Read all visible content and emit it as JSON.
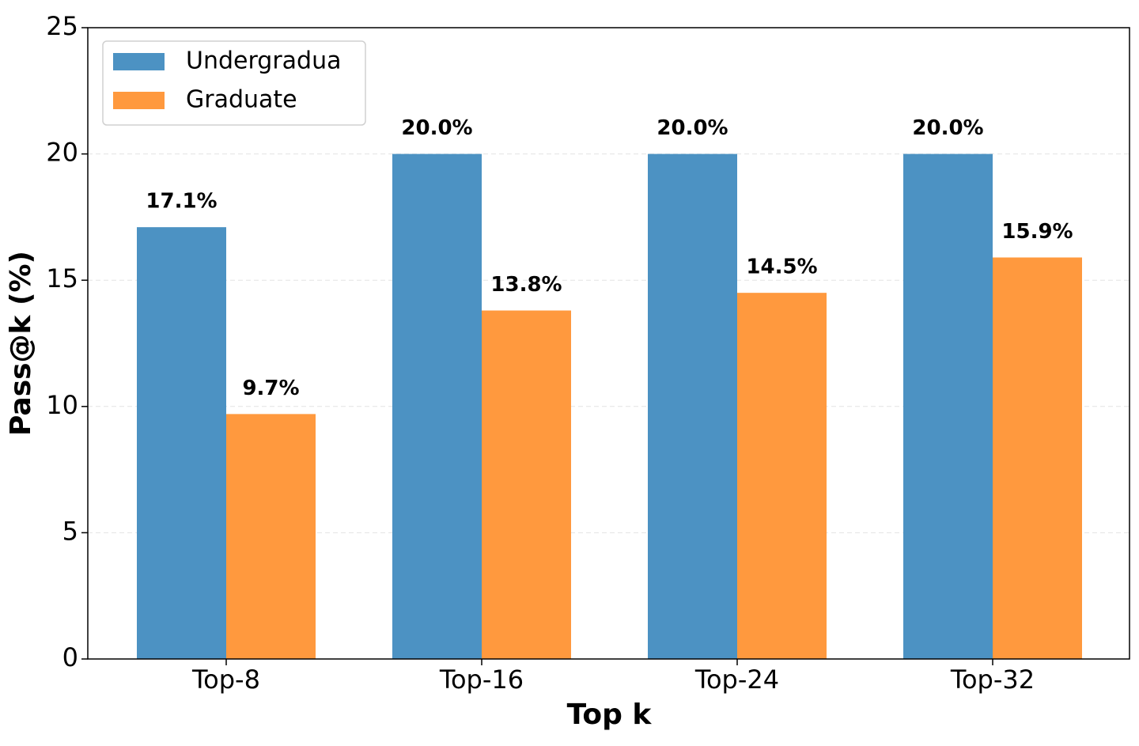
{
  "chart_data": {
    "type": "bar",
    "categories": [
      "Top-8",
      "Top-16",
      "Top-24",
      "Top-32"
    ],
    "series": [
      {
        "name": "Undergradua",
        "color": "#4c92c3",
        "values": [
          17.1,
          20.0,
          20.0,
          20.0
        ],
        "value_labels": [
          "17.1%",
          "20.0%",
          "20.0%",
          "20.0%"
        ]
      },
      {
        "name": "Graduate",
        "color": "#ff993e",
        "values": [
          9.7,
          13.8,
          14.5,
          15.9
        ],
        "value_labels": [
          "9.7%",
          "13.8%",
          "14.5%",
          "15.9%"
        ]
      }
    ],
    "xlabel": "Top k",
    "ylabel": "Pass@k (%)",
    "ylim": [
      0,
      25
    ],
    "yticks": [
      0,
      5,
      10,
      15,
      20,
      25
    ],
    "grid": true,
    "legend": "upper left"
  }
}
